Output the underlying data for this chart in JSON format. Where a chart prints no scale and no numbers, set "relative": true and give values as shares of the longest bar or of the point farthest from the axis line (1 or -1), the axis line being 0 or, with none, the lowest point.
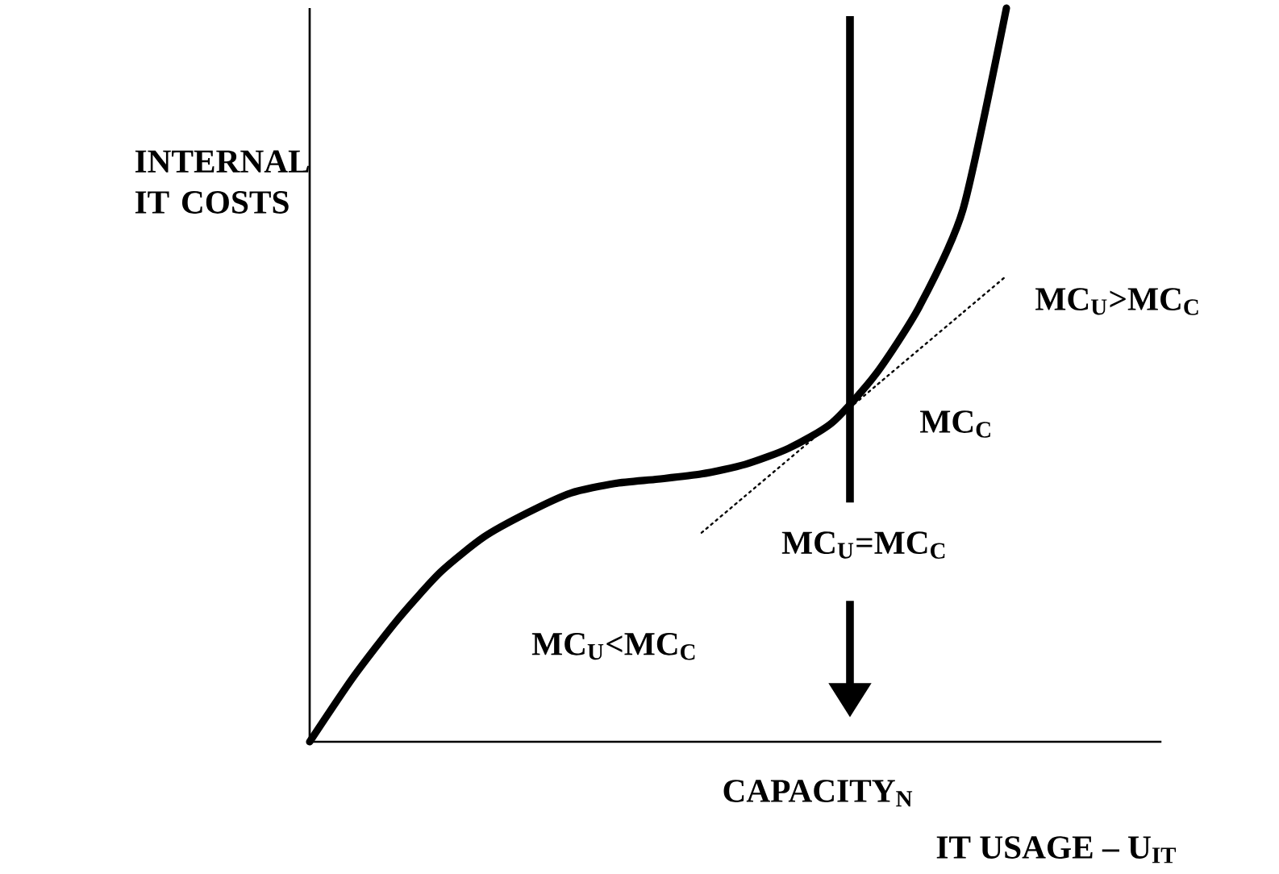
{
  "chart_data": {
    "type": "line",
    "relative": true,
    "xlabel": "IT USAGE – U$_{IT}$",
    "ylabel": "INTERNAL IT COSTS",
    "categories": [
      null,
      null,
      null,
      null,
      null,
      null,
      null,
      null,
      null,
      null,
      null,
      null,
      null,
      null,
      null,
      null,
      null
    ],
    "series": [
      {
        "color": "#000000",
        "line_style": "solid",
        "values": [
          0,
          0.088,
          0.165,
          0.231,
          0.279,
          0.312,
          0.339,
          0.352,
          0.358,
          0.365,
          0.378,
          0.4,
          0.435,
          0.501,
          0.593,
          0.725,
          1
        ]
      },
      {
        "type": "line",
        "color": "#000000",
        "line_style": "dotted",
        "values": [
          null,
          null,
          null,
          null,
          null,
          null,
          null,
          null,
          null,
          0.285,
          0.335,
          0.385,
          0.435,
          0.485,
          0.535,
          0.585,
          0.635
        ]
      }
    ],
    "annotations": [
      "MC$_{U}$>MC$_{C}$",
      "MC$_{C}$",
      "MC$_{U}$=MC$_{C}$",
      "MC$_{U}$<MC$_{C}$",
      "CAPACITY$_{N}$"
    ],
    "marker": "none"
  }
}
